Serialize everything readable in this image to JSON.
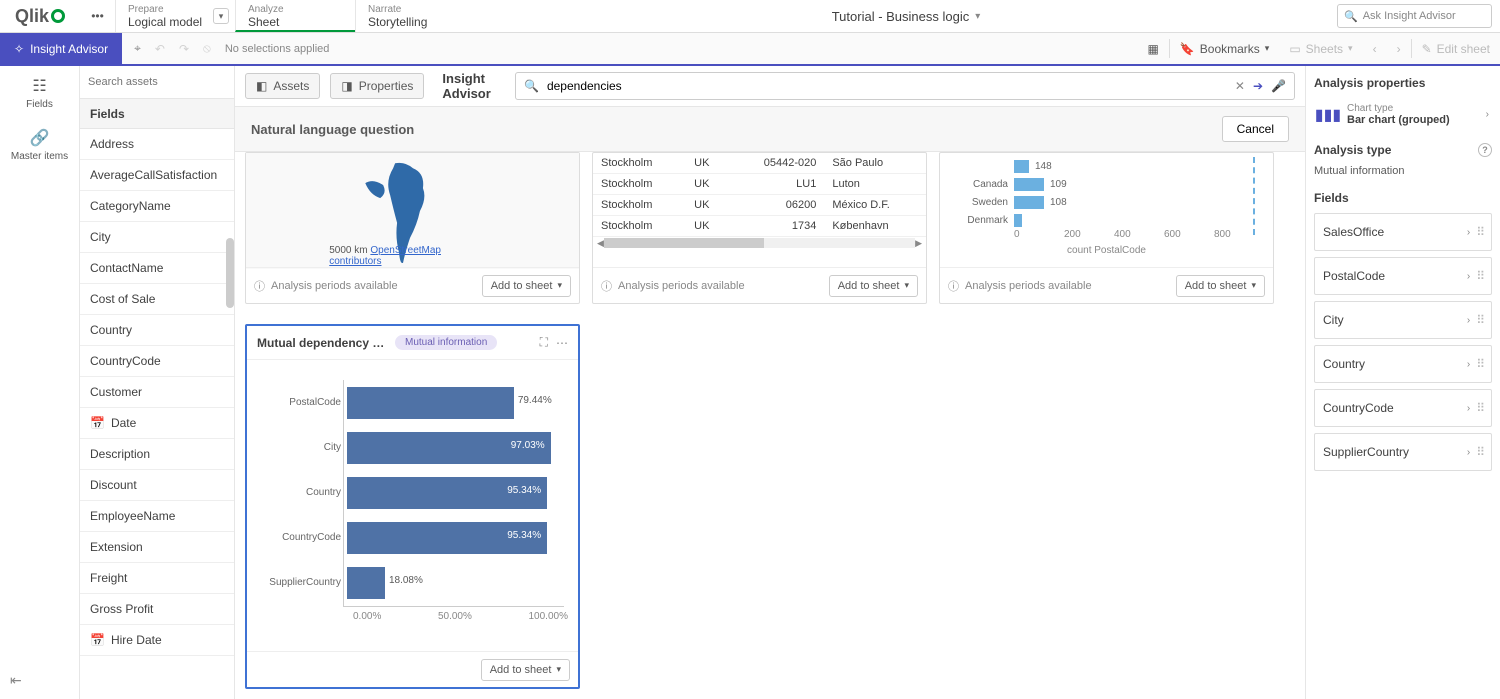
{
  "top": {
    "logo_text": "Qlik",
    "nav": [
      {
        "sub": "Prepare",
        "main": "Logical model",
        "chev": true,
        "active": false
      },
      {
        "sub": "Analyze",
        "main": "Sheet",
        "active": true
      },
      {
        "sub": "Narrate",
        "main": "Storytelling",
        "active": false
      }
    ],
    "title": "Tutorial - Business logic",
    "search_placeholder": "Ask Insight Advisor"
  },
  "toolbar": {
    "insight": "Insight Advisor",
    "no_selections": "No selections applied",
    "bookmarks": "Bookmarks",
    "sheets": "Sheets",
    "edit": "Edit sheet"
  },
  "rail": {
    "fields": "Fields",
    "master": "Master items"
  },
  "fields": {
    "search_placeholder": "Search assets",
    "header": "Fields",
    "items": [
      {
        "label": "Address"
      },
      {
        "label": "AverageCallSatisfaction"
      },
      {
        "label": "CategoryName"
      },
      {
        "label": "City"
      },
      {
        "label": "ContactName"
      },
      {
        "label": "Cost of Sale"
      },
      {
        "label": "Country"
      },
      {
        "label": "CountryCode"
      },
      {
        "label": "Customer"
      },
      {
        "label": "Date",
        "icon": "cal"
      },
      {
        "label": "Description"
      },
      {
        "label": "Discount"
      },
      {
        "label": "EmployeeName"
      },
      {
        "label": "Extension"
      },
      {
        "label": "Freight"
      },
      {
        "label": "Gross Profit"
      },
      {
        "label": "Hire Date",
        "icon": "cal"
      }
    ]
  },
  "centerbar": {
    "assets": "Assets",
    "properties": "Properties",
    "ia": "Insight Advisor",
    "query": "dependencies"
  },
  "nlq": {
    "label": "Natural language question",
    "cancel": "Cancel"
  },
  "cards": {
    "periods": "Analysis periods available",
    "add": "Add to sheet",
    "map": {
      "scale": "5000 km",
      "osm": "OpenStreetMap contributors"
    },
    "table": {
      "rows": [
        [
          "Stockholm",
          "UK",
          "05442-020",
          "São Paulo"
        ],
        [
          "Stockholm",
          "UK",
          "LU1",
          "Luton"
        ],
        [
          "Stockholm",
          "UK",
          "06200",
          "México D.F."
        ],
        [
          "Stockholm",
          "UK",
          "1734",
          "København"
        ]
      ]
    },
    "topbar": {
      "type": "bar",
      "rows": [
        {
          "label": "Canada",
          "value": 109,
          "w": 12
        },
        {
          "label": "Sweden",
          "value": 108,
          "w": 12
        },
        {
          "label": "Denmark",
          "value": "",
          "w": 3
        }
      ],
      "partial_val": "148",
      "axis": [
        "0",
        "200",
        "400",
        "600",
        "800"
      ],
      "color": "#6bb0e0",
      "axis_label": "count PostalCode"
    },
    "mutual": {
      "title": "Mutual dependency bet…",
      "badge": "Mutual information",
      "type": "bar",
      "color": "#4f72a6",
      "xlim": [
        0,
        100
      ],
      "rows": [
        {
          "label": "PostalCode",
          "pct": "79.44%",
          "w": 79.44,
          "out": true
        },
        {
          "label": "City",
          "pct": "97.03%",
          "w": 97.03,
          "out": false
        },
        {
          "label": "Country",
          "pct": "95.34%",
          "w": 95.34,
          "out": false
        },
        {
          "label": "CountryCode",
          "pct": "95.34%",
          "w": 95.34,
          "out": false
        },
        {
          "label": "SupplierCountry",
          "pct": "18.08%",
          "w": 18.08,
          "out": true
        }
      ],
      "axis": [
        "0.00%",
        "50.00%",
        "100.00%"
      ]
    }
  },
  "rp": {
    "title": "Analysis properties",
    "ct_label": "Chart type",
    "ct_value": "Bar chart (grouped)",
    "at_label": "Analysis type",
    "at_value": "Mutual information",
    "fields_label": "Fields",
    "fields": [
      "SalesOffice",
      "PostalCode",
      "City",
      "Country",
      "CountryCode",
      "SupplierCountry"
    ]
  }
}
